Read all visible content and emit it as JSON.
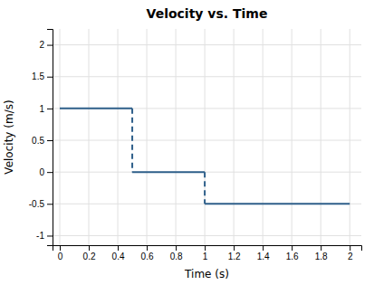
{
  "chart_data": {
    "type": "line",
    "title": "Velocity vs. Time",
    "x_label": "Time (s)",
    "y_label": "Velocity (m/s)",
    "color": "#2e5f8a",
    "grid": true,
    "xlim": [
      -0.05,
      2.08
    ],
    "ylim": [
      -1.15,
      2.25
    ],
    "xticks": [
      0,
      0.2,
      0.4,
      0.6,
      0.8,
      1,
      1.2,
      1.4,
      1.6,
      1.8,
      2
    ],
    "yticks": [
      -1,
      -0.5,
      0,
      0.5,
      1,
      1.5,
      2
    ],
    "series": [
      {
        "x": [
          0,
          0.5
        ],
        "values": [
          1,
          1
        ],
        "line_style": "solid"
      },
      {
        "x": [
          0.5,
          0.5
        ],
        "values": [
          1,
          0
        ],
        "line_style": "dashed"
      },
      {
        "x": [
          0.5,
          1.0
        ],
        "values": [
          0,
          0
        ],
        "line_style": "solid"
      },
      {
        "x": [
          1.0,
          1.0
        ],
        "values": [
          0,
          -0.5
        ],
        "line_style": "dashed"
      },
      {
        "x": [
          1.0,
          2.0
        ],
        "values": [
          -0.5,
          -0.5
        ],
        "line_style": "solid"
      }
    ]
  }
}
